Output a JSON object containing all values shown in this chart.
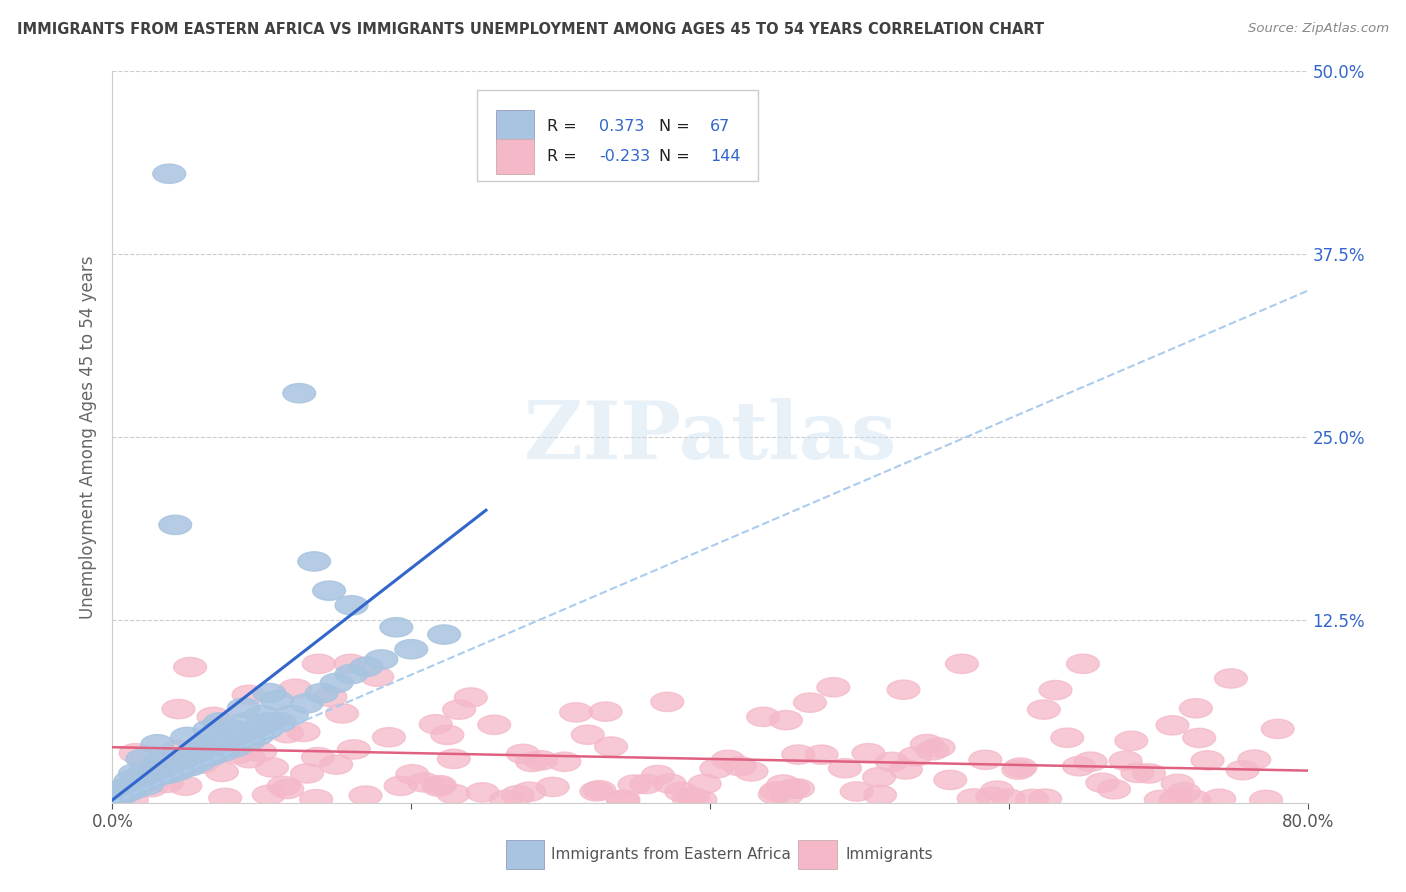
{
  "title": "IMMIGRANTS FROM EASTERN AFRICA VS IMMIGRANTS UNEMPLOYMENT AMONG AGES 45 TO 54 YEARS CORRELATION CHART",
  "source": "Source: ZipAtlas.com",
  "ylabel": "Unemployment Among Ages 45 to 54 years",
  "xlim": [
    0.0,
    0.8
  ],
  "ylim": [
    0.0,
    0.5
  ],
  "xticks": [
    0.0,
    0.2,
    0.4,
    0.6,
    0.8
  ],
  "xticklabels": [
    "0.0%",
    "",
    "",
    "",
    "80.0%"
  ],
  "yticks": [
    0.0,
    0.125,
    0.25,
    0.375,
    0.5
  ],
  "legend1_label": "Immigrants from Eastern Africa",
  "legend2_label": "Immigrants",
  "R1": 0.373,
  "N1": 67,
  "R2": -0.233,
  "N2": 144,
  "scatter1_color": "#a8c4e0",
  "scatter2_color": "#f4b8c8",
  "line1_color": "#3366cc",
  "line2_color": "#e06080",
  "dash_color": "#aaccee",
  "background_color": "#ffffff",
  "grid_color": "#cccccc",
  "title_color": "#404040",
  "right_ytick_color": "#3366cc",
  "ytick_labels": [
    "",
    "12.5%",
    "25.0%",
    "37.5%",
    "50.0%"
  ],
  "seed": 42,
  "figwidth": 14.06,
  "figheight": 8.92,
  "dpi": 100
}
